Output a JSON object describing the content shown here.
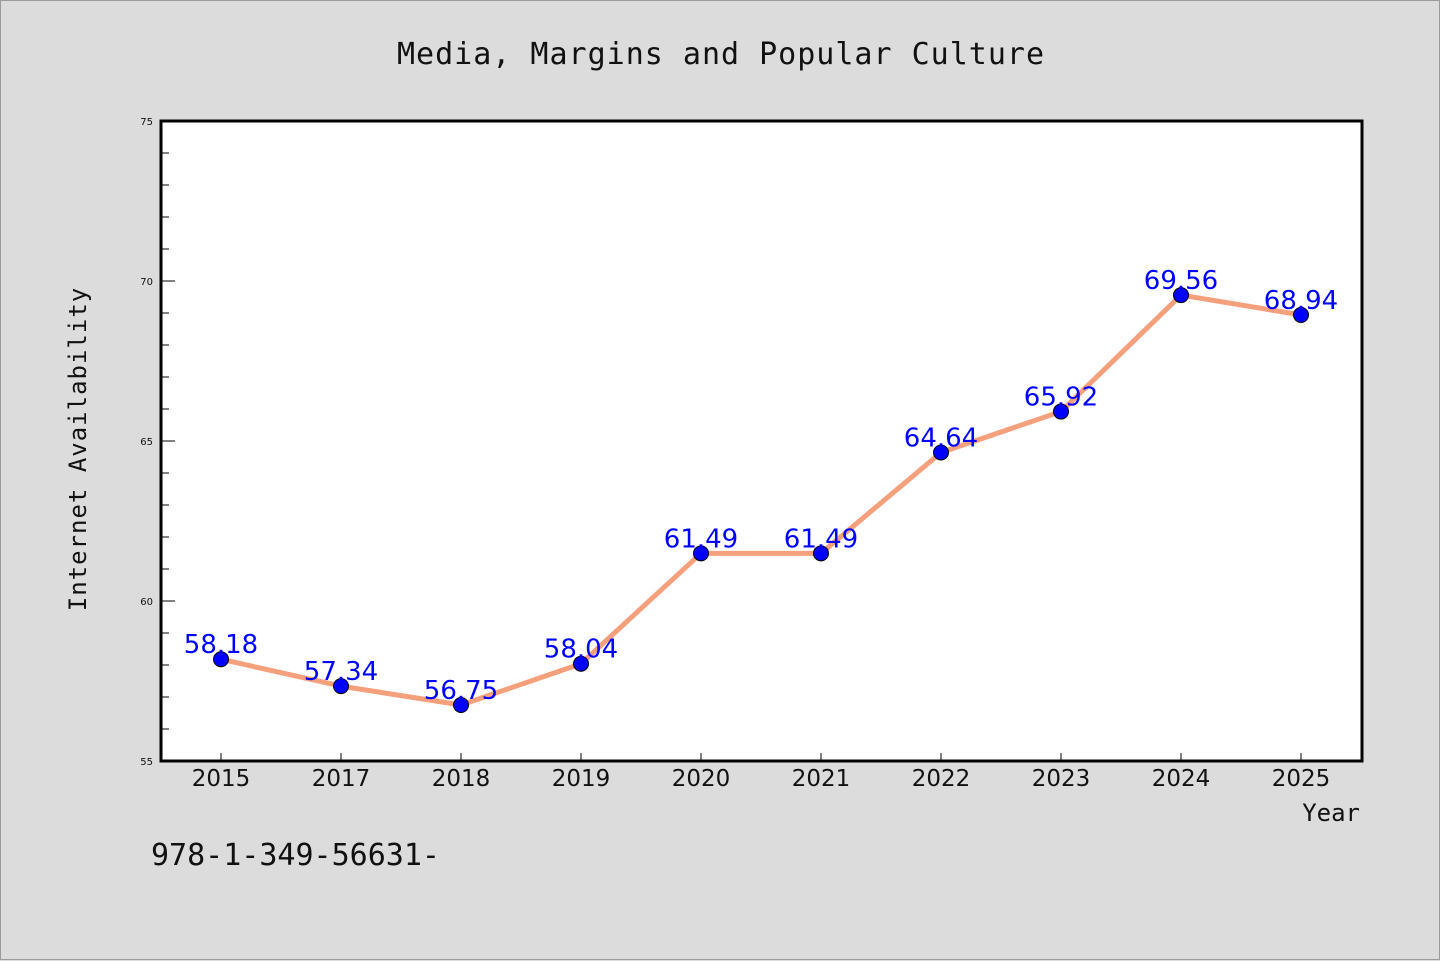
{
  "chart_data": {
    "type": "line",
    "title": "Media, Margins and Popular Culture",
    "xlabel": "Year",
    "ylabel": "Internet Availability",
    "x": [
      "2015",
      "2017",
      "2018",
      "2019",
      "2020",
      "2021",
      "2022",
      "2023",
      "2024",
      "2025"
    ],
    "series": [
      {
        "values": [
          58.18,
          57.34,
          56.75,
          58.04,
          61.49,
          61.49,
          64.64,
          65.92,
          69.56,
          68.94
        ],
        "labels": [
          "58.18",
          "57.34",
          "56.75",
          "58.04",
          "61.49",
          "61.49",
          "64.64",
          "65.92",
          "69.56",
          "68.94"
        ],
        "line_color": "#f4a07c",
        "marker_color": "#0000ff",
        "label_color": "#0000ff"
      }
    ],
    "ylim": [
      55,
      75
    ],
    "yticks": [
      "55",
      "60",
      "65",
      "70",
      "75"
    ],
    "grid": false,
    "legend": "none",
    "plot_background": "#ffffff",
    "figure_background": "#dcdcdc"
  },
  "footnote": "978-1-349-56631-"
}
